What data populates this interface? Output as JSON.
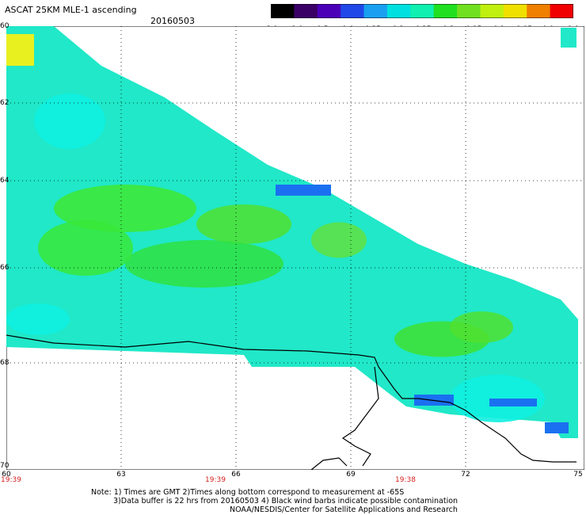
{
  "title": "ASCAT 25KM MLE-1 ascending",
  "date": "20160503",
  "colorbar": {
    "labels": [
      "-3.0",
      "-1.0",
      "-0.5",
      "-0.4",
      "-0.35",
      "-0.3",
      "-0.25",
      "-0.2",
      "-0.15",
      "-0.1",
      "-0.05",
      "0.0",
      "1.0"
    ],
    "colors": [
      "#000000",
      "#3a0066",
      "#4b00b8",
      "#2048e8",
      "#1aa0f0",
      "#00e0e0",
      "#10f0b0",
      "#20e020",
      "#70e020",
      "#c0f010",
      "#f0e000",
      "#f08000",
      "#f00000"
    ]
  },
  "map": {
    "lat_labels": [
      "60",
      "62",
      "64",
      "66",
      "68",
      "70"
    ],
    "lon_labels": [
      "60",
      "63",
      "66",
      "69",
      "72",
      "75"
    ],
    "time_labels": [
      "19:39",
      "19:39",
      "19:38"
    ],
    "colors": {
      "land_cyan": "#00ffe6",
      "green": "#20e020",
      "line": "#000000"
    }
  },
  "notes": {
    "line1": "Note: 1) Times are GMT 2)Times along bottom correspond to measurement at -65S",
    "line2": "3)Data buffer is 22 hrs from 20160503 4) Black wind barbs indicate possible contamination",
    "line3": "NOAA/NESDIS/Center for Satellite Applications and Research"
  }
}
